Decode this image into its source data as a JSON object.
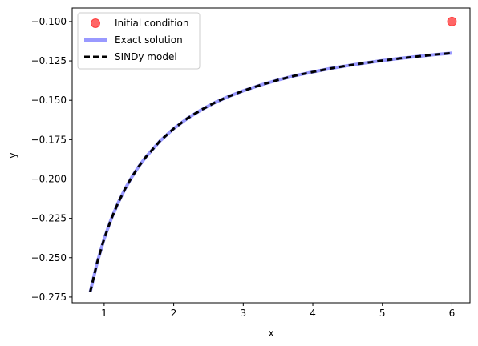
{
  "chart_data": {
    "type": "line",
    "title": "",
    "xlabel": "x",
    "ylabel": "y",
    "xlim": [
      0.54,
      6.26
    ],
    "ylim": [
      -0.2786,
      -0.0914
    ],
    "xticks": [
      1,
      2,
      3,
      4,
      5,
      6
    ],
    "yticks": [
      -0.275,
      -0.25,
      -0.225,
      -0.2,
      -0.175,
      -0.15,
      -0.125,
      -0.1
    ],
    "xtick_labels": [
      "1",
      "2",
      "3",
      "4",
      "5",
      "6"
    ],
    "ytick_labels": [
      "−0.275",
      "−0.250",
      "−0.225",
      "−0.200",
      "−0.175",
      "−0.150",
      "−0.125",
      "−0.100"
    ],
    "grid": false,
    "legend_position": "upper left",
    "series": [
      {
        "name": "Initial condition",
        "style": "marker",
        "color": "#ff0000",
        "x": [
          6.0
        ],
        "y": [
          -0.1
        ]
      },
      {
        "name": "Exact solution",
        "style": "solid",
        "color": "#9999ff",
        "x": [
          0.8,
          0.9,
          1.0,
          1.1,
          1.2,
          1.3,
          1.4,
          1.5,
          1.6,
          1.8,
          2.0,
          2.2,
          2.4,
          2.6,
          2.8,
          3.0,
          3.25,
          3.5,
          3.75,
          4.0,
          4.25,
          4.5,
          4.75,
          5.0,
          5.25,
          5.5,
          5.75,
          6.0
        ],
        "y": [
          -0.2717,
          -0.253,
          -0.238,
          -0.2256,
          -0.2152,
          -0.2063,
          -0.1986,
          -0.1919,
          -0.186,
          -0.176,
          -0.168,
          -0.1614,
          -0.156,
          -0.1513,
          -0.1474,
          -0.144,
          -0.1403,
          -0.1371,
          -0.1343,
          -0.132,
          -0.1298,
          -0.128,
          -0.1263,
          -0.1248,
          -0.1234,
          -0.1222,
          -0.121,
          -0.12
        ]
      },
      {
        "name": "SINDy model",
        "style": "dashed",
        "color": "#000000",
        "x": [
          0.8,
          0.9,
          1.0,
          1.1,
          1.2,
          1.3,
          1.4,
          1.5,
          1.6,
          1.8,
          2.0,
          2.2,
          2.4,
          2.6,
          2.8,
          3.0,
          3.25,
          3.5,
          3.75,
          4.0,
          4.25,
          4.5,
          4.75,
          5.0,
          5.25,
          5.5,
          5.75,
          6.0
        ],
        "y": [
          -0.2717,
          -0.253,
          -0.238,
          -0.2256,
          -0.2152,
          -0.2063,
          -0.1986,
          -0.1919,
          -0.186,
          -0.176,
          -0.168,
          -0.1614,
          -0.156,
          -0.1513,
          -0.1474,
          -0.144,
          -0.1403,
          -0.1371,
          -0.1343,
          -0.132,
          -0.1298,
          -0.128,
          -0.1263,
          -0.1248,
          -0.1234,
          -0.1222,
          -0.121,
          -0.12
        ]
      }
    ]
  }
}
